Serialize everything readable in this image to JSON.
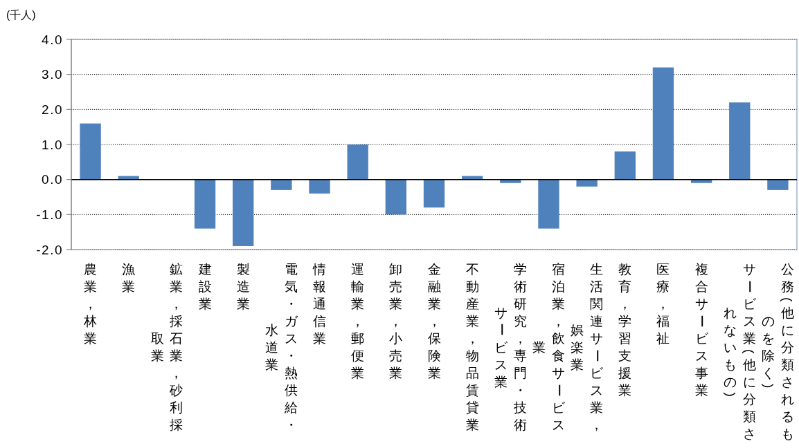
{
  "chart_data": {
    "type": "bar",
    "ylabel": "(千人)",
    "categories": [
      "農業，林業",
      "漁業",
      "鉱業，採石業，砂利採取業",
      "建設業",
      "製造業",
      "電気・ガス・熱供給・水道業",
      "情報通信業",
      "運輸業，郵便業",
      "卸売業，小売業",
      "金融業，保険業",
      "不動産業，物品賃貸業",
      "学術研究，専門・技術サービス業",
      "宿泊業，飲食サービス業",
      "生活関連サービス業，娯楽業",
      "教育，学習支援業",
      "医療，福祉",
      "複合サービス事業",
      "サービス業(他に分類されないもの)",
      "公務(他に分類されるものを除く)"
    ],
    "values": [
      1.6,
      0.1,
      0,
      -1.4,
      -1.9,
      -0.3,
      -0.4,
      1.0,
      -1.0,
      -0.8,
      0.1,
      -0.1,
      -1.4,
      -0.2,
      0.8,
      3.2,
      -0.1,
      2.2,
      -0.3
    ],
    "color": "#4f81bd",
    "ylim": [
      -2,
      4
    ],
    "yticks": [
      {
        "value": -2,
        "label": "-2.0"
      },
      {
        "value": -1,
        "label": "-1.0"
      },
      {
        "value": 0,
        "label": "0.0"
      },
      {
        "value": 1,
        "label": "1.0"
      },
      {
        "value": 2,
        "label": "2.0"
      },
      {
        "value": 3,
        "label": "3.0"
      },
      {
        "value": 4,
        "label": "4.0"
      }
    ],
    "grid": "y"
  }
}
